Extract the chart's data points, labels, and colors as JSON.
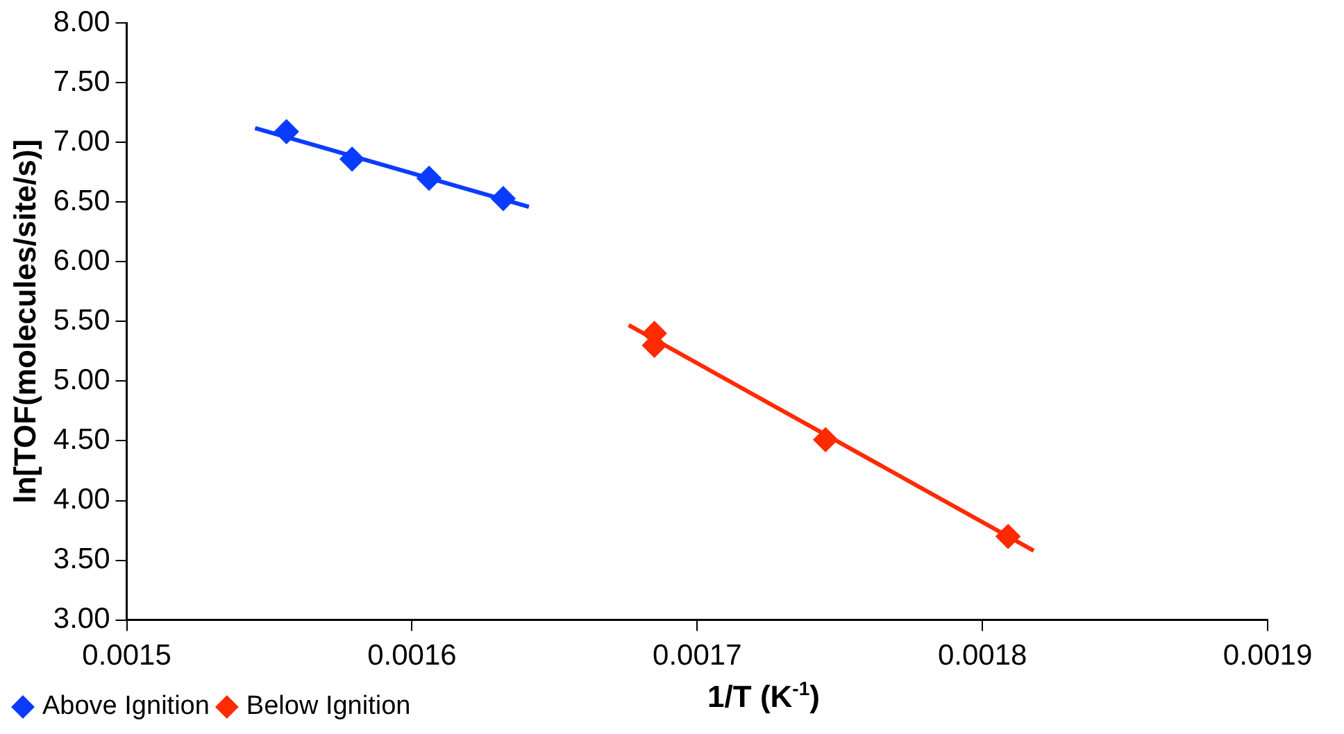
{
  "chart_data": {
    "type": "scatter",
    "xlabel": "1/T (K$^{-1}$)",
    "ylabel": "ln[TOF(molecules/site/s)]",
    "xlim": [
      0.0015,
      0.0019
    ],
    "xticks": [
      0.0015,
      0.0016,
      0.0017,
      0.0018,
      0.0019
    ],
    "ylim": [
      3,
      8
    ],
    "yticks": [
      {
        "value": 3,
        "label": "3.00"
      },
      {
        "value": 3.5,
        "label": "3.50"
      },
      {
        "value": 4,
        "label": "4.00"
      },
      {
        "value": 4.5,
        "label": "4.50"
      },
      {
        "value": 5,
        "label": "5.00"
      },
      {
        "value": 5.5,
        "label": "5.50"
      },
      {
        "value": 6,
        "label": "6.00"
      },
      {
        "value": 6.5,
        "label": "6.50"
      },
      {
        "value": 7,
        "label": "7.00"
      },
      {
        "value": 7.5,
        "label": "7.50"
      },
      {
        "value": 8,
        "label": "8.00"
      }
    ],
    "grid": false,
    "legend": "bottom left",
    "marker": "diamond",
    "series": [
      {
        "name": "Above Ignition",
        "color": "#0a3cff",
        "x": [
          0.001556,
          0.001579,
          0.001606,
          0.001632
        ],
        "values": [
          7.09,
          6.86,
          6.7,
          6.53
        ]
      },
      {
        "name": "Below Ignition",
        "color": "#ff2a00",
        "x": [
          0.001685,
          0.001685,
          0.001745,
          0.001809
        ],
        "values": [
          5.4,
          5.3,
          4.51,
          3.7
        ]
      },
      {
        "type": "line",
        "color": "#0a3cff",
        "marker": "none",
        "x": [
          0.001545,
          0.001641
        ],
        "values": [
          7.12,
          6.46
        ]
      },
      {
        "type": "line",
        "color": "#ff2a00",
        "marker": "none",
        "x": [
          0.001676,
          0.001818
        ],
        "values": [
          5.47,
          3.58
        ]
      }
    ]
  }
}
